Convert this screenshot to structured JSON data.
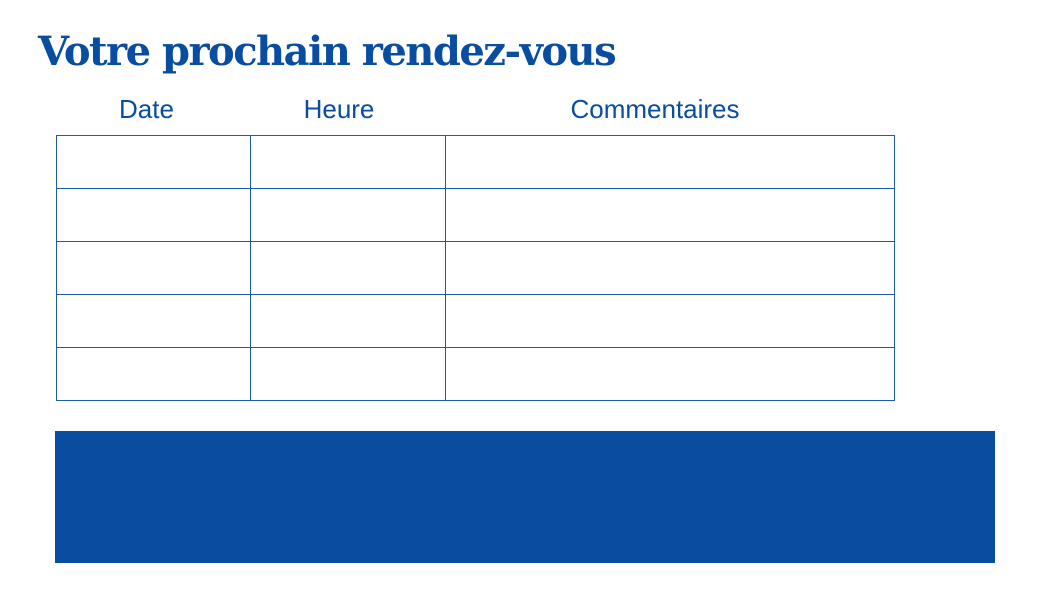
{
  "title": "Votre prochain rendez-vous",
  "table": {
    "headers": [
      "Date",
      "Heure",
      "Commentaires"
    ],
    "rows": [
      [
        "",
        "",
        ""
      ],
      [
        "",
        "",
        ""
      ],
      [
        "",
        "",
        ""
      ],
      [
        "",
        "",
        ""
      ],
      [
        "",
        "",
        ""
      ]
    ]
  },
  "colors": {
    "brand": "#084da0"
  }
}
